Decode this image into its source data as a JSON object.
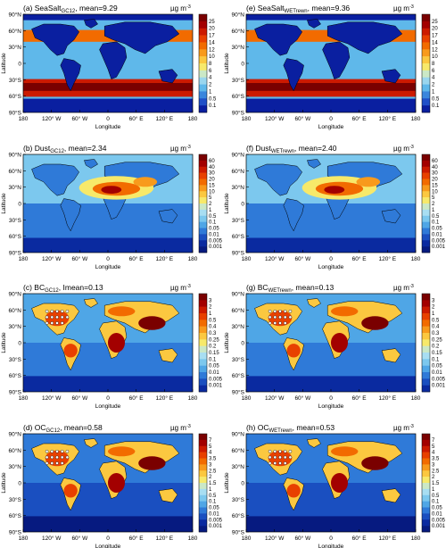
{
  "figure": {
    "panels": [
      {
        "id": "a",
        "prefix": "(a) SeaSalt",
        "sub": "GC12",
        "suffix": ", mean=9.29",
        "unit_base": "µg m",
        "unit_exp": "-3",
        "cbar": [
          "25",
          "20",
          "17",
          "14",
          "12",
          "10",
          "8",
          "6",
          "4",
          "2",
          "1",
          "0.5",
          "0.1"
        ],
        "cbar_colors": [
          "#7a0000",
          "#a30000",
          "#cc1a00",
          "#e84000",
          "#f26b00",
          "#f89a1c",
          "#fbc840",
          "#f7e96a",
          "#cbe8c6",
          "#9ad6ee",
          "#5fb8ea",
          "#3a86dd",
          "#2050c8",
          "#0a1fa0"
        ]
      },
      {
        "id": "e",
        "prefix": "(e) SeaSalt",
        "sub": "WETrewn",
        "suffix": ", mean=9.36",
        "unit_base": "µg m",
        "unit_exp": "-3",
        "cbar": [
          "25",
          "20",
          "17",
          "14",
          "12",
          "10",
          "8",
          "6",
          "4",
          "2",
          "1",
          "0.5",
          "0.1"
        ],
        "cbar_colors": [
          "#7a0000",
          "#a30000",
          "#cc1a00",
          "#e84000",
          "#f26b00",
          "#f89a1c",
          "#fbc840",
          "#f7e96a",
          "#cbe8c6",
          "#9ad6ee",
          "#5fb8ea",
          "#3a86dd",
          "#2050c8",
          "#0a1fa0"
        ]
      },
      {
        "id": "b",
        "prefix": "(b) Dust",
        "sub": "GC12",
        "suffix": ", mean=2.34",
        "unit_base": "µg m",
        "unit_exp": "-3",
        "cbar": [
          "60",
          "40",
          "30",
          "20",
          "15",
          "10",
          "5",
          "2",
          "1",
          "0.5",
          "0.1",
          "0.05",
          "0.01",
          "0.005",
          "0.001"
        ],
        "cbar_colors": [
          "#7a0000",
          "#a30000",
          "#cc1a00",
          "#e84000",
          "#f26b00",
          "#f89a1c",
          "#fbc840",
          "#f7e96a",
          "#cbe8c6",
          "#a8def2",
          "#7cc8ee",
          "#4fa6e6",
          "#2f7ad8",
          "#1a4fc0",
          "#0a2aa0",
          "#061a80"
        ]
      },
      {
        "id": "f",
        "prefix": "(f) Dust",
        "sub": "WETrewn",
        "suffix": ", mean=2.40",
        "unit_base": "µg m",
        "unit_exp": "-3",
        "cbar": [
          "60",
          "40",
          "30",
          "20",
          "15",
          "10",
          "5",
          "2",
          "1",
          "0.5",
          "0.1",
          "0.05",
          "0.01",
          "0.005",
          "0.001"
        ],
        "cbar_colors": [
          "#7a0000",
          "#a30000",
          "#cc1a00",
          "#e84000",
          "#f26b00",
          "#f89a1c",
          "#fbc840",
          "#f7e96a",
          "#cbe8c6",
          "#a8def2",
          "#7cc8ee",
          "#4fa6e6",
          "#2f7ad8",
          "#1a4fc0",
          "#0a2aa0",
          "#061a80"
        ]
      },
      {
        "id": "c",
        "prefix": "(c) BC",
        "sub": "GC12",
        "suffix": ", Imean=0.13",
        "unit_base": "µg m",
        "unit_exp": "-3",
        "cbar": [
          "3",
          "2",
          "1",
          "0.5",
          "0.4",
          "0.3",
          "0.25",
          "0.2",
          "0.15",
          "0.1",
          "0.05",
          "0.01",
          "0.005",
          "0.001"
        ],
        "cbar_colors": [
          "#7a0000",
          "#a30000",
          "#cc1a00",
          "#e84000",
          "#f26b00",
          "#f89a1c",
          "#fbc840",
          "#f7e96a",
          "#cbe8c6",
          "#a8def2",
          "#7cc8ee",
          "#4fa6e6",
          "#2f7ad8",
          "#1a4fc0",
          "#0a2aa0"
        ]
      },
      {
        "id": "g",
        "prefix": "(g) BC",
        "sub": "WETrewn",
        "suffix": ", mean=0.13",
        "unit_base": "µg m",
        "unit_exp": "-3",
        "cbar": [
          "3",
          "2",
          "1",
          "0.5",
          "0.4",
          "0.3",
          "0.25",
          "0.2",
          "0.15",
          "0.1",
          "0.05",
          "0.01",
          "0.005",
          "0.001"
        ],
        "cbar_colors": [
          "#7a0000",
          "#a30000",
          "#cc1a00",
          "#e84000",
          "#f26b00",
          "#f89a1c",
          "#fbc840",
          "#f7e96a",
          "#cbe8c6",
          "#a8def2",
          "#7cc8ee",
          "#4fa6e6",
          "#2f7ad8",
          "#1a4fc0",
          "#0a2aa0"
        ]
      },
      {
        "id": "d",
        "prefix": "(d) OC",
        "sub": "GC12",
        "suffix": ", mean=0.58",
        "unit_base": "µg m",
        "unit_exp": "-3",
        "cbar": [
          "7",
          "5",
          "4",
          "3.5",
          "3",
          "2.5",
          "2",
          "1.5",
          "1",
          "0.5",
          "0.1",
          "0.05",
          "0.01",
          "0.005",
          "0.001"
        ],
        "cbar_colors": [
          "#7a0000",
          "#a30000",
          "#cc1a00",
          "#e84000",
          "#f26b00",
          "#f89a1c",
          "#fbc840",
          "#f7e96a",
          "#cbe8c6",
          "#a8def2",
          "#7cc8ee",
          "#4fa6e6",
          "#2f7ad8",
          "#1a4fc0",
          "#0a2aa0",
          "#061a80"
        ]
      },
      {
        "id": "h",
        "prefix": "(h) OC",
        "sub": "WETrewn",
        "suffix": ", mean=0.53",
        "unit_base": "µg m",
        "unit_exp": "-3",
        "cbar": [
          "7",
          "5",
          "4",
          "3.5",
          "3",
          "2.5",
          "2",
          "1.5",
          "1",
          "0.5",
          "0.1",
          "0.05",
          "0.01",
          "0.005",
          "0.001"
        ],
        "cbar_colors": [
          "#7a0000",
          "#a30000",
          "#cc1a00",
          "#e84000",
          "#f26b00",
          "#f89a1c",
          "#fbc840",
          "#f7e96a",
          "#cbe8c6",
          "#a8def2",
          "#7cc8ee",
          "#4fa6e6",
          "#2f7ad8",
          "#1a4fc0",
          "#0a2aa0",
          "#061a80"
        ]
      }
    ],
    "lat_ticks": [
      "90°N",
      "60°N",
      "30°N",
      "0",
      "30°S",
      "60°S",
      "90°S"
    ],
    "lon_ticks": [
      "180",
      "120° W",
      "60° W",
      "0",
      "60° E",
      "120° E",
      "180"
    ],
    "xlabel": "Longitude",
    "ylabel": "Latitude"
  }
}
